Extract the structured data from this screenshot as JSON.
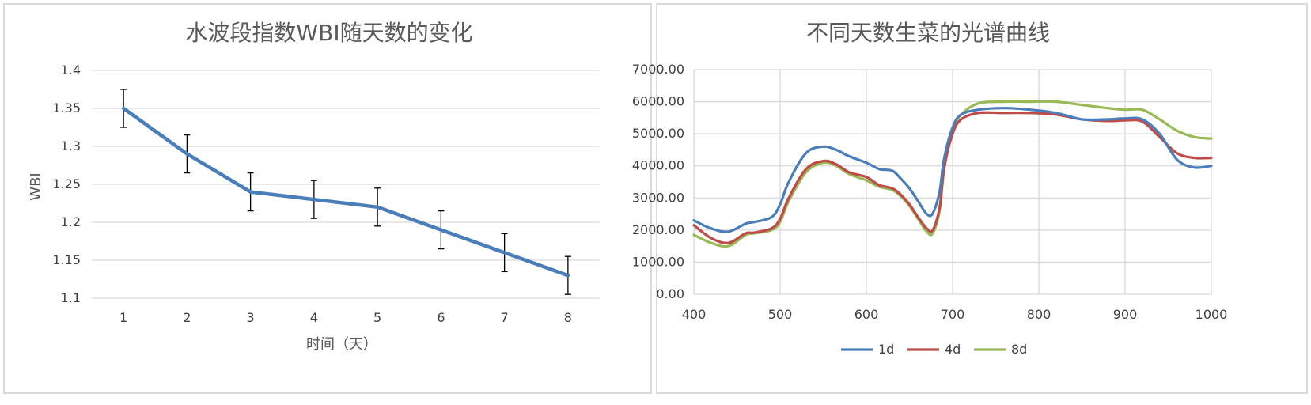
{
  "chart_data": [
    {
      "type": "line",
      "title": "水波段指数WBI随天数的变化",
      "xlabel": "时间（天）",
      "ylabel": "WBI",
      "categories": [
        "1",
        "2",
        "3",
        "4",
        "5",
        "6",
        "7",
        "8"
      ],
      "series": [
        {
          "values": [
            1.35,
            1.29,
            1.24,
            1.23,
            1.22,
            1.19,
            1.16,
            1.13
          ],
          "error": [
            0.025,
            0.025,
            0.025,
            0.025,
            0.025,
            0.025,
            0.025,
            0.025
          ],
          "color": "#4a7ebb"
        }
      ],
      "ylim": [
        1.1,
        1.4
      ],
      "yticks": [
        "1.1",
        "1.15",
        "1.2",
        "1.25",
        "1.3",
        "1.35",
        "1.4"
      ],
      "grid": "horizontal"
    },
    {
      "type": "line",
      "title": "不同天数生菜的光谱曲线",
      "xlim": [
        400,
        1000
      ],
      "ylim": [
        0,
        7000
      ],
      "xticks": [
        "400",
        "500",
        "600",
        "700",
        "800",
        "900",
        "1000"
      ],
      "yticks": [
        "0.00",
        "1000.00",
        "2000.00",
        "3000.00",
        "4000.00",
        "5000.00",
        "6000.00",
        "7000.00"
      ],
      "grid": "both",
      "legend": "bottom",
      "series": [
        {
          "name": "1d",
          "color": "#4a7ebb",
          "x": [
            400,
            420,
            440,
            460,
            470,
            490,
            500,
            510,
            530,
            550,
            565,
            580,
            600,
            615,
            630,
            640,
            650,
            660,
            670,
            677,
            685,
            690,
            700,
            710,
            730,
            760,
            790,
            820,
            850,
            880,
            900,
            920,
            940,
            960,
            980,
            1000
          ],
          "y": [
            2300,
            2050,
            1950,
            2200,
            2250,
            2400,
            2800,
            3500,
            4400,
            4600,
            4500,
            4300,
            4100,
            3900,
            3850,
            3600,
            3300,
            2900,
            2500,
            2520,
            3200,
            4200,
            5200,
            5600,
            5750,
            5800,
            5750,
            5650,
            5450,
            5450,
            5480,
            5450,
            5000,
            4200,
            3950,
            4000
          ]
        },
        {
          "name": "4d",
          "color": "#be4b48",
          "x": [
            400,
            420,
            440,
            460,
            470,
            490,
            500,
            510,
            530,
            550,
            565,
            580,
            600,
            615,
            630,
            640,
            650,
            660,
            670,
            677,
            685,
            690,
            700,
            710,
            730,
            760,
            790,
            820,
            850,
            880,
            900,
            920,
            940,
            960,
            980,
            1000
          ],
          "y": [
            2150,
            1750,
            1600,
            1900,
            1920,
            2050,
            2350,
            3000,
            3900,
            4150,
            4050,
            3800,
            3650,
            3400,
            3300,
            3100,
            2800,
            2400,
            2050,
            2000,
            2700,
            3900,
            5000,
            5450,
            5650,
            5650,
            5650,
            5600,
            5450,
            5400,
            5420,
            5380,
            4900,
            4400,
            4250,
            4250
          ]
        },
        {
          "name": "8d",
          "color": "#98b954",
          "x": [
            400,
            420,
            440,
            460,
            470,
            490,
            500,
            510,
            530,
            550,
            565,
            580,
            600,
            615,
            630,
            640,
            650,
            660,
            670,
            677,
            685,
            690,
            700,
            710,
            730,
            760,
            790,
            820,
            850,
            880,
            900,
            920,
            940,
            960,
            980,
            1000
          ],
          "y": [
            1850,
            1600,
            1500,
            1850,
            1900,
            2000,
            2250,
            2900,
            3800,
            4100,
            4000,
            3750,
            3550,
            3350,
            3250,
            3050,
            2750,
            2350,
            1950,
            1900,
            2600,
            3850,
            5100,
            5600,
            5950,
            6000,
            6000,
            6000,
            5900,
            5800,
            5750,
            5750,
            5450,
            5100,
            4900,
            4850
          ]
        }
      ]
    }
  ]
}
